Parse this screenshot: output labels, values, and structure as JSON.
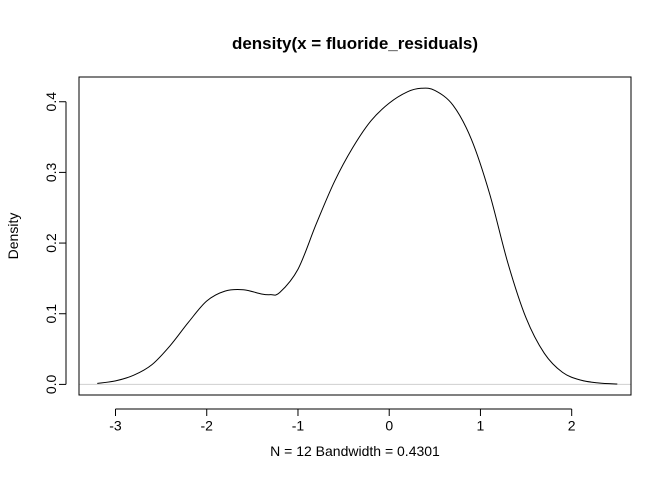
{
  "chart_data": {
    "type": "line",
    "title": "density(x = fluoride_residuals)",
    "xlabel": "N = 12   Bandwidth = 0.4301",
    "ylabel": "Density",
    "xlim": [
      -3.4,
      2.65
    ],
    "ylim": [
      -0.015,
      0.435
    ],
    "x_ticks": [
      -3,
      -2,
      -1,
      0,
      1,
      2
    ],
    "x_tick_labels": [
      "-3",
      "-2",
      "-1",
      "0",
      "1",
      "2"
    ],
    "y_ticks": [
      0.0,
      0.1,
      0.2,
      0.3,
      0.4
    ],
    "y_tick_labels": [
      "0.0",
      "0.1",
      "0.2",
      "0.3",
      "0.4"
    ],
    "grid": false,
    "baseline": 0,
    "series": [
      {
        "color": "#000000",
        "x": [
          -3.2,
          -3.0,
          -2.8,
          -2.6,
          -2.4,
          -2.2,
          -2.0,
          -1.8,
          -1.6,
          -1.4,
          -1.3,
          -1.2,
          -1.0,
          -0.8,
          -0.6,
          -0.4,
          -0.2,
          0.0,
          0.2,
          0.35,
          0.5,
          0.7,
          0.9,
          1.1,
          1.3,
          1.5,
          1.7,
          1.9,
          2.1,
          2.3,
          2.5
        ],
        "y": [
          0.0015,
          0.005,
          0.013,
          0.028,
          0.055,
          0.088,
          0.118,
          0.132,
          0.134,
          0.128,
          0.127,
          0.13,
          0.163,
          0.227,
          0.287,
          0.335,
          0.373,
          0.398,
          0.414,
          0.419,
          0.416,
          0.395,
          0.347,
          0.27,
          0.172,
          0.094,
          0.044,
          0.017,
          0.006,
          0.002,
          0.0005
        ]
      }
    ]
  }
}
